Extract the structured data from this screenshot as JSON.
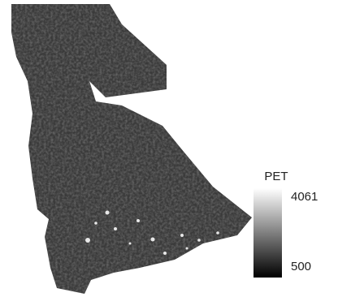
{
  "legend": {
    "title": "PET",
    "max": "4061",
    "min": "500"
  }
}
